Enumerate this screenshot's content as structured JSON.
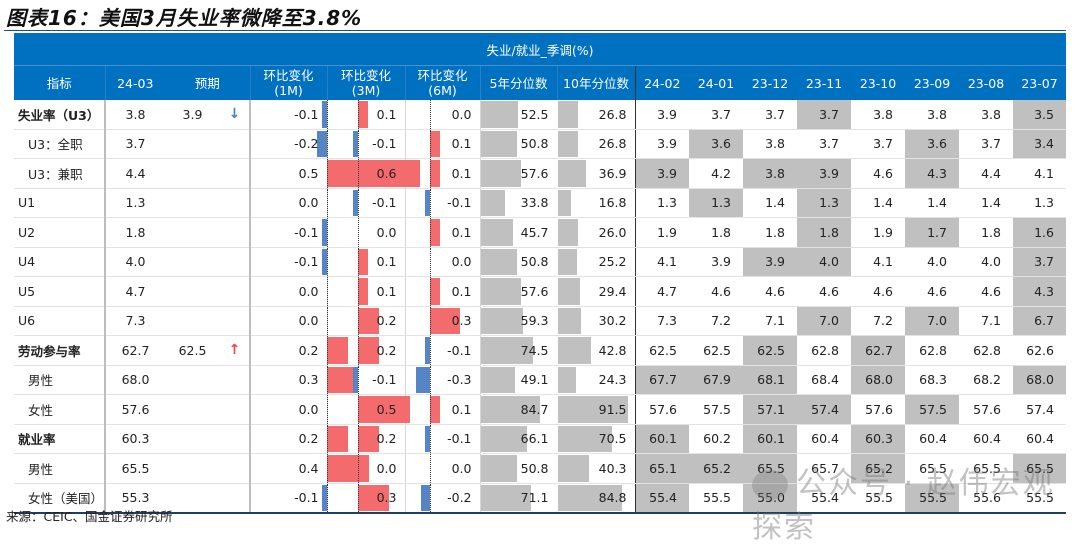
{
  "title": "图表16：美国3月失业率微降至3.8%",
  "source": "来源：CEIC、国金证券研究所",
  "watermark": "公众号 · 赵伟宏观探索",
  "table": {
    "group_header": "失业/就业_季调(%)",
    "headers": {
      "indicator": "指标",
      "current": "24-03",
      "forecast": "预期",
      "chg1m": [
        "环比变化",
        "(1M)"
      ],
      "chg3m": [
        "环比变化",
        "(3M)"
      ],
      "chg6m": [
        "环比变化",
        "(6M)"
      ],
      "pct5y": "5年分位数",
      "pct10y": "10年分位数",
      "months": [
        "24-02",
        "24-01",
        "23-12",
        "23-11",
        "23-10",
        "23-09",
        "23-08",
        "23-07"
      ]
    },
    "colors": {
      "header_bg": "#0070c0",
      "positive_bar": "#f46b6e",
      "negative_bar": "#5585c5",
      "shade": "#c0c0c0",
      "arrow_down": "#4a7fc1",
      "arrow_up": "#e84a4a"
    },
    "rows": [
      {
        "name": "失业率（U3）",
        "style": "bold",
        "current": "3.8",
        "forecast": "3.9",
        "arrow": "↓",
        "arrow_dir": "down",
        "chg1m": "-0.1",
        "chg3m": "0.1",
        "chg6m": "0.0",
        "pct5y": "52.5",
        "pct10y": "26.8",
        "months": [
          "3.9",
          "3.7",
          "3.7",
          "3.7",
          "3.8",
          "3.8",
          "3.8",
          "3.5"
        ],
        "shade": [
          0,
          0,
          0,
          1,
          0,
          0,
          0,
          1
        ]
      },
      {
        "name": "U3：全职",
        "style": "sub",
        "current": "3.7",
        "forecast": "",
        "arrow": "",
        "chg1m": "-0.2",
        "chg3m": "-0.1",
        "chg6m": "0.1",
        "pct5y": "50.8",
        "pct10y": "26.8",
        "months": [
          "3.9",
          "3.6",
          "3.8",
          "3.7",
          "3.7",
          "3.6",
          "3.7",
          "3.4"
        ],
        "shade": [
          0,
          1,
          0,
          0,
          0,
          1,
          0,
          1
        ]
      },
      {
        "name": "U3：兼职",
        "style": "sub",
        "current": "4.4",
        "forecast": "",
        "arrow": "",
        "chg1m": "0.5",
        "chg3m": "0.6",
        "chg6m": "0.1",
        "pct5y": "57.6",
        "pct10y": "36.9",
        "months": [
          "3.9",
          "4.2",
          "3.8",
          "3.9",
          "4.6",
          "4.3",
          "4.4",
          "4.1"
        ],
        "shade": [
          1,
          0,
          1,
          1,
          0,
          1,
          0,
          0
        ]
      },
      {
        "name": "U1",
        "style": "plain",
        "current": "1.3",
        "forecast": "",
        "arrow": "",
        "chg1m": "0.0",
        "chg3m": "-0.1",
        "chg6m": "-0.1",
        "pct5y": "33.8",
        "pct10y": "16.8",
        "months": [
          "1.3",
          "1.3",
          "1.4",
          "1.3",
          "1.4",
          "1.4",
          "1.4",
          "1.3"
        ],
        "shade": [
          0,
          1,
          0,
          1,
          0,
          0,
          0,
          0
        ]
      },
      {
        "name": "U2",
        "style": "plain",
        "current": "1.8",
        "forecast": "",
        "arrow": "",
        "chg1m": "-0.1",
        "chg3m": "0.0",
        "chg6m": "0.1",
        "pct5y": "45.7",
        "pct10y": "26.0",
        "months": [
          "1.9",
          "1.8",
          "1.8",
          "1.8",
          "1.9",
          "1.7",
          "1.8",
          "1.6"
        ],
        "shade": [
          0,
          0,
          0,
          1,
          0,
          1,
          0,
          1
        ]
      },
      {
        "name": "U4",
        "style": "plain",
        "current": "4.0",
        "forecast": "",
        "arrow": "",
        "chg1m": "-0.1",
        "chg3m": "0.1",
        "chg6m": "0.0",
        "pct5y": "50.8",
        "pct10y": "25.2",
        "months": [
          "4.1",
          "3.9",
          "3.9",
          "4.0",
          "4.1",
          "4.0",
          "4.0",
          "3.7"
        ],
        "shade": [
          0,
          0,
          1,
          1,
          0,
          0,
          0,
          1
        ]
      },
      {
        "name": "U5",
        "style": "plain",
        "current": "4.7",
        "forecast": "",
        "arrow": "",
        "chg1m": "0.0",
        "chg3m": "0.1",
        "chg6m": "0.1",
        "pct5y": "57.6",
        "pct10y": "29.4",
        "months": [
          "4.7",
          "4.6",
          "4.6",
          "4.6",
          "4.6",
          "4.6",
          "4.6",
          "4.3"
        ],
        "shade": [
          0,
          0,
          0,
          0,
          0,
          0,
          0,
          1
        ]
      },
      {
        "name": "U6",
        "style": "plain",
        "current": "7.3",
        "forecast": "",
        "arrow": "",
        "chg1m": "0.0",
        "chg3m": "0.2",
        "chg6m": "0.3",
        "pct5y": "59.3",
        "pct10y": "30.2",
        "months": [
          "7.3",
          "7.2",
          "7.1",
          "7.0",
          "7.2",
          "7.0",
          "7.1",
          "6.7"
        ],
        "shade": [
          0,
          0,
          0,
          1,
          0,
          1,
          0,
          1
        ]
      },
      {
        "name": "劳动参与率",
        "style": "bold",
        "group": true,
        "current": "62.7",
        "forecast": "62.5",
        "arrow": "↑",
        "arrow_dir": "up",
        "chg1m": "0.2",
        "chg3m": "0.2",
        "chg6m": "-0.1",
        "pct5y": "74.5",
        "pct10y": "42.8",
        "months": [
          "62.5",
          "62.5",
          "62.5",
          "62.8",
          "62.7",
          "62.8",
          "62.8",
          "62.6"
        ],
        "shade": [
          0,
          0,
          1,
          0,
          1,
          0,
          0,
          0
        ]
      },
      {
        "name": "男性",
        "style": "sub",
        "current": "68.0",
        "forecast": "",
        "arrow": "",
        "chg1m": "0.3",
        "chg3m": "-0.1",
        "chg6m": "-0.3",
        "pct5y": "49.1",
        "pct10y": "24.3",
        "months": [
          "67.7",
          "67.9",
          "68.1",
          "68.4",
          "68.0",
          "68.3",
          "68.2",
          "68.0"
        ],
        "shade": [
          1,
          1,
          1,
          0,
          1,
          0,
          0,
          1
        ]
      },
      {
        "name": "女性",
        "style": "sub",
        "current": "57.6",
        "forecast": "",
        "arrow": "",
        "chg1m": "0.0",
        "chg3m": "0.5",
        "chg6m": "0.1",
        "pct5y": "84.7",
        "pct10y": "91.5",
        "months": [
          "57.6",
          "57.5",
          "57.1",
          "57.4",
          "57.6",
          "57.5",
          "57.6",
          "57.4"
        ],
        "shade": [
          0,
          0,
          1,
          1,
          0,
          1,
          0,
          0
        ]
      },
      {
        "name": "就业率",
        "style": "bold",
        "group": true,
        "current": "60.3",
        "forecast": "",
        "arrow": "",
        "chg1m": "0.2",
        "chg3m": "0.2",
        "chg6m": "-0.1",
        "pct5y": "66.1",
        "pct10y": "70.5",
        "months": [
          "60.1",
          "60.2",
          "60.1",
          "60.4",
          "60.3",
          "60.4",
          "60.4",
          "60.4"
        ],
        "shade": [
          1,
          0,
          1,
          0,
          1,
          0,
          0,
          0
        ]
      },
      {
        "name": "男性",
        "style": "sub",
        "current": "65.5",
        "forecast": "",
        "arrow": "",
        "chg1m": "0.4",
        "chg3m": "0.0",
        "chg6m": "0.0",
        "pct5y": "50.8",
        "pct10y": "40.3",
        "months": [
          "65.1",
          "65.2",
          "65.5",
          "65.7",
          "65.2",
          "65.5",
          "65.5",
          "65.5"
        ],
        "shade": [
          1,
          1,
          1,
          0,
          1,
          0,
          0,
          1
        ]
      },
      {
        "name": "女性（美国）",
        "style": "sub",
        "current": "55.3",
        "forecast": "",
        "arrow": "",
        "chg1m": "-0.1",
        "chg3m": "0.3",
        "chg6m": "-0.2",
        "pct5y": "71.1",
        "pct10y": "84.8",
        "months": [
          "55.4",
          "55.5",
          "55.0",
          "55.4",
          "55.5",
          "55.5",
          "55.6",
          "55.5"
        ],
        "shade": [
          1,
          0,
          1,
          0,
          0,
          1,
          0,
          0
        ]
      }
    ]
  }
}
